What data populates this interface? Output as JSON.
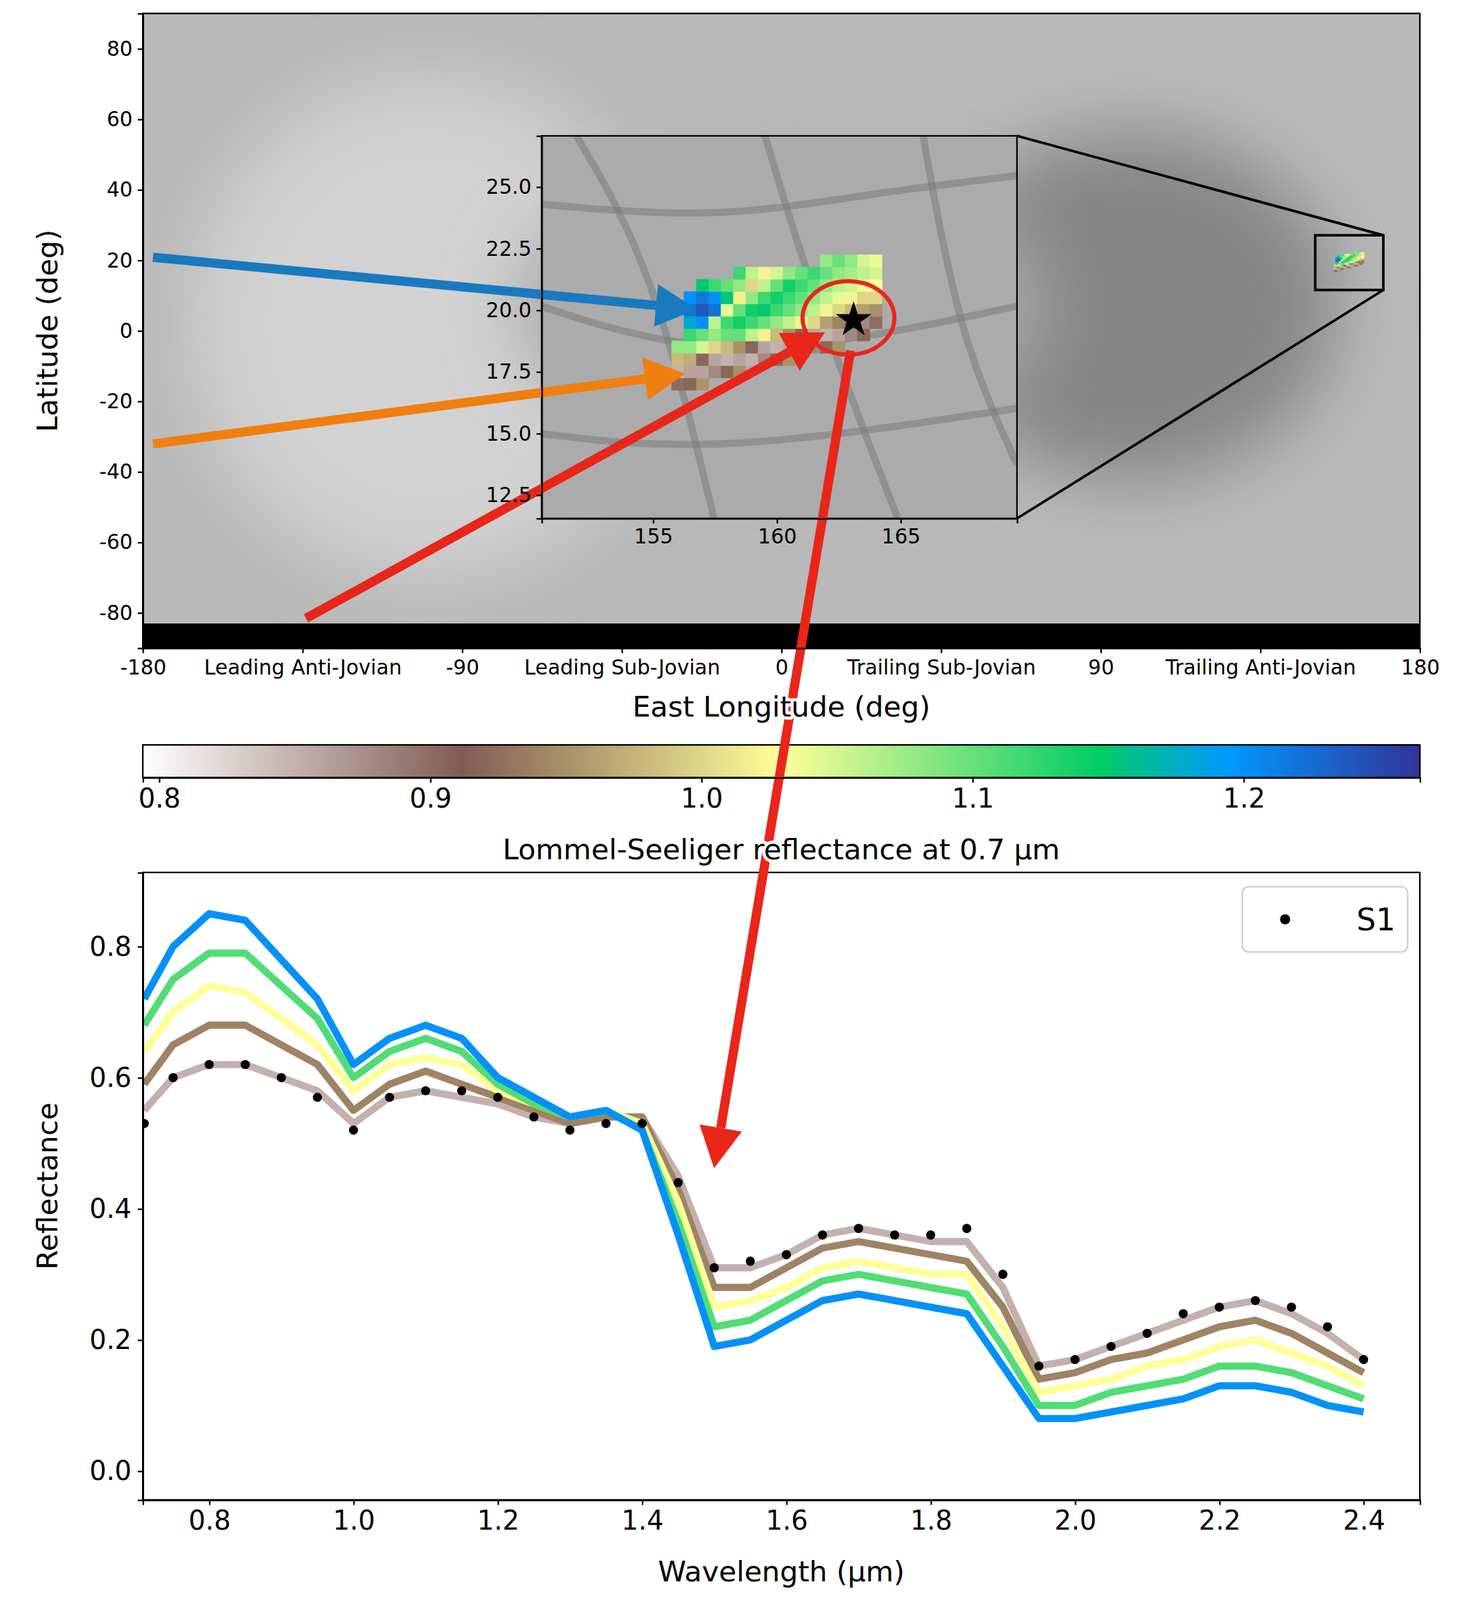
{
  "chart_data": [
    {
      "type": "map",
      "xlabel": "East Longitude (deg)",
      "ylabel": "Latitude (deg)",
      "xlim": [
        -180,
        180
      ],
      "ylim": [
        -90,
        90
      ],
      "xticks": [
        -180,
        {
          "value": -135,
          "label": "Leading Anti-Jovian"
        },
        -90,
        {
          "value": -45,
          "label": "Leading Sub-Jovian"
        },
        0,
        {
          "value": 45,
          "label": "Trailing Sub-Jovian"
        },
        90,
        {
          "value": 135,
          "label": "Trailing Anti-Jovian"
        },
        180
      ],
      "yticks": [
        -80,
        -60,
        -40,
        -20,
        0,
        20,
        40,
        60,
        80
      ]
    },
    {
      "type": "heatmap",
      "xlim": [
        150.5,
        169.7
      ],
      "ylim": [
        11.55,
        27.07
      ],
      "xticks": [
        155,
        160,
        165
      ],
      "yticks": [
        12.5,
        {
          "value": 15,
          "label": "15.0"
        },
        17.5,
        {
          "value": 20,
          "label": "20.0"
        },
        22.5,
        {
          "value": 25,
          "label": "25.0"
        }
      ],
      "cell_size": [
        0.5,
        0.5
      ],
      "cells": [
        [
          156.0,
          17.0,
          0.9
        ],
        [
          156.0,
          17.5,
          0.85
        ],
        [
          156.0,
          18.0,
          0.98
        ],
        [
          156.0,
          18.5,
          1.08
        ],
        [
          156.5,
          17.0,
          0.92
        ],
        [
          156.5,
          17.5,
          0.86
        ],
        [
          156.5,
          18.0,
          0.97
        ],
        [
          156.5,
          18.5,
          1.08
        ],
        [
          156.5,
          19.0,
          1.12
        ],
        [
          156.5,
          19.5,
          1.18
        ],
        [
          156.5,
          20.0,
          1.22
        ],
        [
          156.5,
          20.5,
          1.2
        ],
        [
          157.0,
          17.0,
          0.95
        ],
        [
          157.0,
          17.5,
          0.86
        ],
        [
          157.0,
          18.0,
          0.92
        ],
        [
          157.0,
          18.5,
          1.05
        ],
        [
          157.0,
          19.0,
          1.1
        ],
        [
          157.0,
          19.5,
          1.2
        ],
        [
          157.0,
          20.0,
          1.24
        ],
        [
          157.0,
          20.5,
          1.22
        ],
        [
          157.0,
          21.0,
          1.15
        ],
        [
          157.5,
          17.5,
          0.88
        ],
        [
          157.5,
          18.0,
          0.86
        ],
        [
          157.5,
          18.5,
          1.0
        ],
        [
          157.5,
          19.0,
          1.08
        ],
        [
          157.5,
          19.5,
          1.06
        ],
        [
          157.5,
          20.0,
          1.22
        ],
        [
          157.5,
          20.5,
          1.2
        ],
        [
          157.5,
          21.0,
          1.12
        ],
        [
          158.0,
          17.5,
          0.92
        ],
        [
          158.0,
          18.0,
          0.85
        ],
        [
          158.0,
          18.5,
          0.98
        ],
        [
          158.0,
          19.0,
          1.1
        ],
        [
          158.0,
          19.5,
          1.12
        ],
        [
          158.0,
          20.0,
          1.04
        ],
        [
          158.0,
          20.5,
          1.15
        ],
        [
          158.0,
          21.0,
          1.1
        ],
        [
          158.5,
          17.5,
          0.95
        ],
        [
          158.5,
          18.0,
          0.86
        ],
        [
          158.5,
          18.5,
          0.95
        ],
        [
          158.5,
          19.0,
          1.1
        ],
        [
          158.5,
          19.5,
          1.14
        ],
        [
          158.5,
          20.0,
          1.1
        ],
        [
          158.5,
          20.5,
          1.02
        ],
        [
          158.5,
          21.0,
          1.08
        ],
        [
          158.5,
          21.5,
          1.12
        ],
        [
          159.0,
          18.0,
          0.85
        ],
        [
          159.0,
          18.5,
          0.92
        ],
        [
          159.0,
          19.0,
          1.06
        ],
        [
          159.0,
          19.5,
          1.12
        ],
        [
          159.0,
          20.0,
          1.14
        ],
        [
          159.0,
          20.5,
          1.08
        ],
        [
          159.0,
          21.0,
          1.0
        ],
        [
          159.0,
          21.5,
          1.06
        ],
        [
          159.5,
          18.0,
          0.88
        ],
        [
          159.5,
          18.5,
          0.86
        ],
        [
          159.5,
          19.0,
          1.02
        ],
        [
          159.5,
          19.5,
          1.1
        ],
        [
          159.5,
          20.0,
          1.15
        ],
        [
          159.5,
          20.5,
          1.12
        ],
        [
          159.5,
          21.0,
          1.06
        ],
        [
          159.5,
          21.5,
          1.02
        ],
        [
          160.0,
          18.0,
          0.92
        ],
        [
          160.0,
          18.5,
          0.85
        ],
        [
          160.0,
          19.0,
          0.98
        ],
        [
          160.0,
          19.5,
          1.08
        ],
        [
          160.0,
          20.0,
          1.12
        ],
        [
          160.0,
          20.5,
          1.14
        ],
        [
          160.0,
          21.0,
          1.1
        ],
        [
          160.0,
          21.5,
          1.05
        ],
        [
          160.5,
          18.0,
          0.95
        ],
        [
          160.5,
          18.5,
          0.86
        ],
        [
          160.5,
          19.0,
          0.95
        ],
        [
          160.5,
          19.5,
          1.06
        ],
        [
          160.5,
          20.0,
          1.1
        ],
        [
          160.5,
          20.5,
          1.12
        ],
        [
          160.5,
          21.0,
          1.14
        ],
        [
          160.5,
          21.5,
          1.08
        ],
        [
          161.0,
          18.5,
          0.85
        ],
        [
          161.0,
          19.0,
          0.92
        ],
        [
          161.0,
          19.5,
          1.04
        ],
        [
          161.0,
          20.0,
          1.08
        ],
        [
          161.0,
          20.5,
          1.1
        ],
        [
          161.0,
          21.0,
          1.12
        ],
        [
          161.0,
          21.5,
          1.1
        ],
        [
          161.5,
          18.5,
          0.88
        ],
        [
          161.5,
          19.0,
          0.86
        ],
        [
          161.5,
          19.5,
          1.0
        ],
        [
          161.5,
          20.0,
          1.06
        ],
        [
          161.5,
          20.5,
          1.08
        ],
        [
          161.5,
          21.0,
          1.1
        ],
        [
          161.5,
          21.5,
          1.12
        ],
        [
          162.0,
          18.5,
          0.92
        ],
        [
          162.0,
          19.0,
          0.85
        ],
        [
          162.0,
          19.5,
          0.96
        ],
        [
          162.0,
          20.0,
          1.02
        ],
        [
          162.0,
          20.5,
          1.06
        ],
        [
          162.0,
          21.0,
          1.08
        ],
        [
          162.0,
          21.5,
          1.1
        ],
        [
          162.0,
          22.0,
          1.08
        ],
        [
          162.5,
          18.5,
          0.95
        ],
        [
          162.5,
          19.0,
          0.86
        ],
        [
          162.5,
          19.5,
          0.94
        ],
        [
          162.5,
          20.0,
          1.0
        ],
        [
          162.5,
          20.5,
          1.04
        ],
        [
          162.5,
          21.0,
          1.06
        ],
        [
          162.5,
          21.5,
          1.08
        ],
        [
          162.5,
          22.0,
          1.1
        ],
        [
          163.0,
          19.0,
          0.88
        ],
        [
          163.0,
          19.5,
          0.9
        ],
        [
          163.0,
          20.0,
          0.98
        ],
        [
          163.0,
          20.5,
          1.02
        ],
        [
          163.0,
          21.0,
          1.05
        ],
        [
          163.0,
          21.5,
          1.07
        ],
        [
          163.0,
          22.0,
          1.08
        ],
        [
          163.5,
          19.0,
          0.92
        ],
        [
          163.5,
          19.5,
          0.88
        ],
        [
          163.5,
          20.0,
          0.96
        ],
        [
          163.5,
          20.5,
          1.0
        ],
        [
          163.5,
          21.0,
          1.04
        ],
        [
          163.5,
          21.5,
          1.06
        ],
        [
          163.5,
          22.0,
          1.05
        ],
        [
          164.0,
          19.5,
          0.9
        ],
        [
          164.0,
          20.0,
          0.95
        ],
        [
          164.0,
          20.5,
          1.0
        ],
        [
          164.0,
          21.0,
          1.03
        ],
        [
          164.0,
          21.5,
          1.05
        ],
        [
          164.0,
          22.0,
          1.04
        ]
      ],
      "points": [
        {
          "x": 163.1,
          "y": 19.6,
          "marker": "star"
        }
      ]
    },
    {
      "type": "colorbar",
      "xlabel": "Lommel-Seeliger reflectance at 0.7 µm",
      "xlim": [
        0.794,
        1.265
      ],
      "xticks": [
        0.8,
        0.9,
        {
          "value": 1,
          "label": "1.0"
        },
        1.1,
        1.2
      ],
      "colors": [
        "#ffffff",
        "#805c54",
        "#ffff99",
        "#00cc66",
        "#0099ff",
        "#333399"
      ]
    },
    {
      "type": "line",
      "xlabel": "Wavelength (µm)",
      "ylabel": "Reflectance",
      "xlim": [
        0.708,
        2.478
      ],
      "ylim": [
        -0.044,
        0.913
      ],
      "xticks": [
        0.8,
        {
          "value": 1,
          "label": "1.0"
        },
        1.2,
        1.4,
        1.6,
        1.8,
        {
          "value": 2,
          "label": "2.0"
        },
        2.2,
        2.4
      ],
      "yticks": [
        {
          "value": 0,
          "label": "0.0"
        },
        0.2,
        0.4,
        0.6,
        0.8
      ],
      "legend": "upper right",
      "x": [
        0.71,
        0.75,
        0.8,
        0.85,
        0.9,
        0.95,
        1.0,
        1.05,
        1.1,
        1.15,
        1.2,
        1.25,
        1.3,
        1.35,
        1.4,
        1.45,
        1.5,
        1.55,
        1.6,
        1.65,
        1.7,
        1.75,
        1.8,
        1.85,
        1.9,
        1.95,
        2.0,
        2.05,
        2.1,
        2.15,
        2.2,
        2.25,
        2.3,
        2.35,
        2.4
      ],
      "series": [
        {
          "colorbar_value": 0.85,
          "values": [
            0.55,
            0.6,
            0.62,
            0.62,
            0.6,
            0.58,
            0.53,
            0.57,
            0.58,
            0.57,
            0.56,
            0.54,
            0.53,
            0.54,
            0.54,
            0.45,
            0.31,
            0.31,
            0.33,
            0.36,
            0.37,
            0.36,
            0.35,
            0.35,
            0.28,
            0.16,
            0.17,
            0.19,
            0.21,
            0.23,
            0.25,
            0.26,
            0.24,
            0.21,
            0.17
          ]
        },
        {
          "colorbar_value": 0.94,
          "values": [
            0.59,
            0.65,
            0.68,
            0.68,
            0.65,
            0.62,
            0.55,
            0.59,
            0.61,
            0.59,
            0.57,
            0.55,
            0.53,
            0.54,
            0.54,
            0.43,
            0.28,
            0.28,
            0.31,
            0.34,
            0.35,
            0.34,
            0.33,
            0.32,
            0.25,
            0.14,
            0.15,
            0.17,
            0.18,
            0.2,
            0.22,
            0.23,
            0.21,
            0.18,
            0.15
          ]
        },
        {
          "colorbar_value": 1.03,
          "values": [
            0.64,
            0.7,
            0.74,
            0.73,
            0.69,
            0.65,
            0.58,
            0.62,
            0.63,
            0.62,
            0.58,
            0.56,
            0.54,
            0.55,
            0.53,
            0.41,
            0.25,
            0.26,
            0.28,
            0.31,
            0.32,
            0.31,
            0.3,
            0.3,
            0.22,
            0.12,
            0.13,
            0.14,
            0.16,
            0.17,
            0.19,
            0.2,
            0.18,
            0.16,
            0.13
          ]
        },
        {
          "colorbar_value": 1.11,
          "values": [
            0.68,
            0.75,
            0.79,
            0.79,
            0.74,
            0.69,
            0.6,
            0.64,
            0.66,
            0.64,
            0.59,
            0.56,
            0.54,
            0.55,
            0.52,
            0.38,
            0.22,
            0.23,
            0.26,
            0.29,
            0.3,
            0.29,
            0.28,
            0.27,
            0.19,
            0.1,
            0.1,
            0.12,
            0.13,
            0.14,
            0.16,
            0.16,
            0.15,
            0.13,
            0.11
          ]
        },
        {
          "colorbar_value": 1.2,
          "values": [
            0.72,
            0.8,
            0.85,
            0.84,
            0.78,
            0.72,
            0.62,
            0.66,
            0.68,
            0.66,
            0.6,
            0.57,
            0.54,
            0.55,
            0.52,
            0.36,
            0.19,
            0.2,
            0.23,
            0.26,
            0.27,
            0.26,
            0.25,
            0.24,
            0.16,
            0.08,
            0.08,
            0.09,
            0.1,
            0.11,
            0.13,
            0.13,
            0.12,
            0.1,
            0.09
          ]
        },
        {
          "name": "S1",
          "type": "scatter",
          "marker": "circle",
          "color": "#000000",
          "values": [
            0.53,
            0.6,
            0.62,
            0.62,
            0.6,
            0.57,
            0.52,
            0.57,
            0.58,
            0.58,
            0.57,
            0.54,
            0.52,
            0.53,
            0.53,
            0.44,
            0.31,
            0.32,
            0.33,
            0.36,
            0.37,
            0.36,
            0.36,
            0.37,
            0.3,
            0.16,
            0.17,
            0.19,
            0.21,
            0.24,
            0.25,
            0.26,
            0.25,
            0.22,
            0.17
          ]
        }
      ]
    }
  ]
}
